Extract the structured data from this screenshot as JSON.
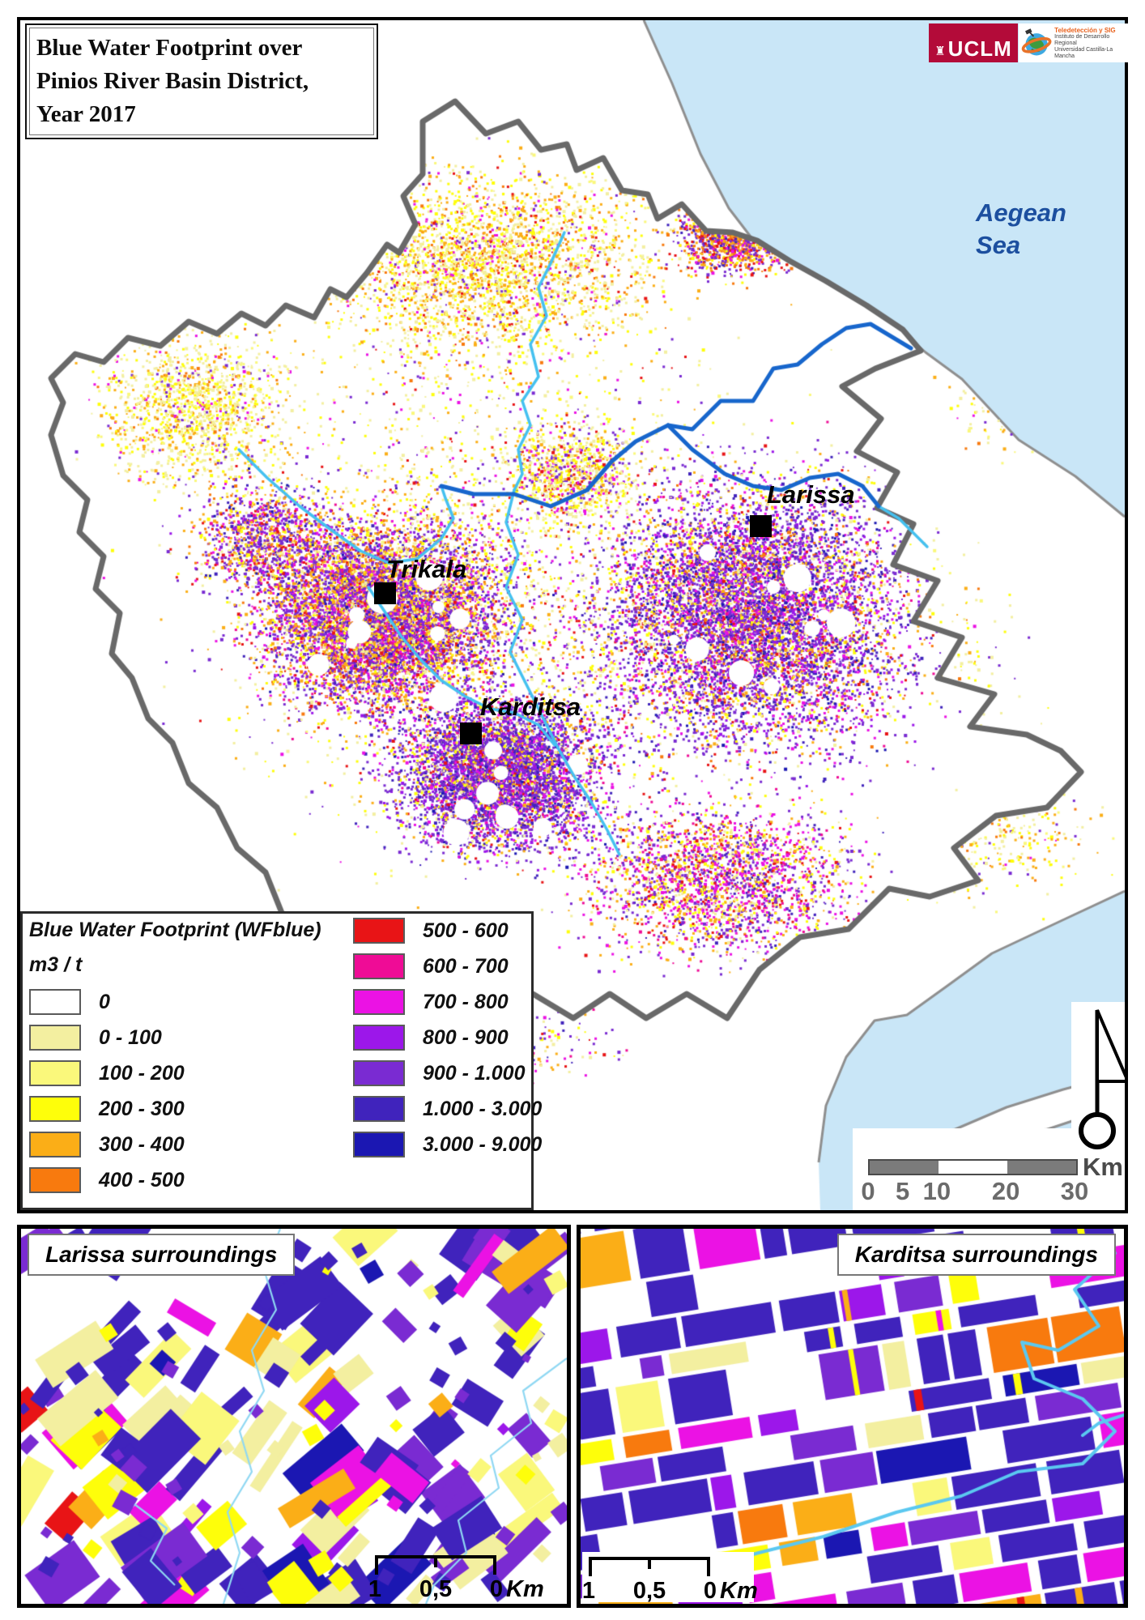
{
  "title": {
    "lines": [
      "Blue Water Footprint over",
      "Pinios River Basin District,",
      "Year 2017"
    ]
  },
  "logos": {
    "uclm": {
      "label": "UCLM",
      "emblem": "♜",
      "bg": "#B30B39"
    },
    "gis": {
      "line1": "Teledetección y SIG",
      "line2": "Instituto de Desarrollo Regional",
      "line3": "Universidad Castilla-La Mancha"
    }
  },
  "map": {
    "sea_label_line1": "Aegean",
    "sea_label_line2": "Sea",
    "sea_color": "#C9E6F7",
    "river_main_color": "#1766CC",
    "river_trib_color": "#45C1F0",
    "cities": [
      {
        "name": "Trikala"
      },
      {
        "name": "Larissa"
      },
      {
        "name": "Karditsa"
      }
    ]
  },
  "legend": {
    "title": "Blue Water Footprint (WFblue)",
    "unit": "m3 / t",
    "classes": [
      {
        "label": "0",
        "color": "#FFFFFF"
      },
      {
        "label": "0 - 100",
        "color": "#F3EFA0"
      },
      {
        "label": "100 - 200",
        "color": "#FAF87B"
      },
      {
        "label": "200 - 300",
        "color": "#FEFE0A"
      },
      {
        "label": "300 - 400",
        "color": "#FBAE17"
      },
      {
        "label": "400 - 500",
        "color": "#F87A0E"
      },
      {
        "label": "500 - 600",
        "color": "#E81416"
      },
      {
        "label": "600 - 700",
        "color": "#EF0C96"
      },
      {
        "label": "700 - 800",
        "color": "#EB12E4"
      },
      {
        "label": "800 - 900",
        "color": "#9C17EA"
      },
      {
        "label": "900 - 1.000",
        "color": "#7A2BD2"
      },
      {
        "label": "1.000 - 3.000",
        "color": "#4023BC"
      },
      {
        "label": "3.000 - 9.000",
        "color": "#1B17B2"
      }
    ]
  },
  "scalebar": {
    "labels": [
      "0",
      "5",
      "10",
      "20",
      "30"
    ],
    "unit": "Km"
  },
  "insets": [
    {
      "title": "Larissa surroundings",
      "scale_labels": [
        "1",
        "0,5",
        "0"
      ],
      "scale_unit": "Km"
    },
    {
      "title": "Karditsa surroundings",
      "scale_labels": [
        "1",
        "0,5",
        "0"
      ],
      "scale_unit": "Km"
    }
  ]
}
